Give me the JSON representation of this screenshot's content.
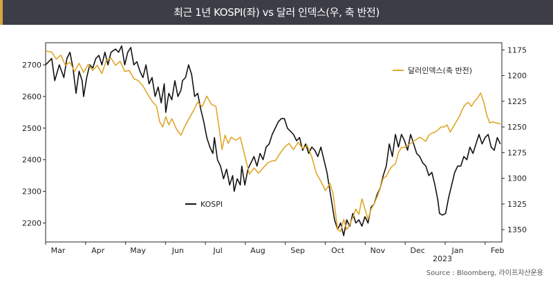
{
  "header": {
    "title": "최근 1년 KOSPI(좌) vs 달러 인덱스(우, 축 반전)"
  },
  "source": "Source : Bloomberg, 라이프자산운용",
  "chart_data": {
    "type": "line",
    "title": "최근 1년 KOSPI(좌) vs 달러 인덱스(우, 축 반전)",
    "x_months": [
      "Mar",
      "Apr",
      "May",
      "Jun",
      "Jul",
      "Aug",
      "Sep",
      "Oct",
      "Nov",
      "Dec",
      "Jan",
      "Feb"
    ],
    "x_year_label": "2023",
    "y_left": {
      "ticks": [
        2200,
        2300,
        2400,
        2500,
        2600,
        2700
      ],
      "range": [
        2140,
        2770
      ]
    },
    "y_right": {
      "ticks": [
        1175,
        1200,
        1225,
        1250,
        1275,
        1300,
        1325,
        1350
      ],
      "range": [
        1168,
        1362
      ],
      "inverted": true
    },
    "series": [
      {
        "name": "KOSPI",
        "axis": "left",
        "color": "#111111",
        "points": [
          [
            0,
            2700
          ],
          [
            0.2,
            2720
          ],
          [
            0.3,
            2650
          ],
          [
            0.45,
            2700
          ],
          [
            0.6,
            2660
          ],
          [
            0.7,
            2720
          ],
          [
            0.8,
            2740
          ],
          [
            0.9,
            2690
          ],
          [
            1.0,
            2610
          ],
          [
            1.1,
            2680
          ],
          [
            1.2,
            2650
          ],
          [
            1.25,
            2600
          ],
          [
            1.35,
            2660
          ],
          [
            1.45,
            2700
          ],
          [
            1.55,
            2690
          ],
          [
            1.65,
            2720
          ],
          [
            1.75,
            2730
          ],
          [
            1.85,
            2700
          ],
          [
            1.95,
            2740
          ],
          [
            2.05,
            2700
          ],
          [
            2.15,
            2740
          ],
          [
            2.3,
            2750
          ],
          [
            2.4,
            2740
          ],
          [
            2.5,
            2760
          ],
          [
            2.6,
            2700
          ],
          [
            2.7,
            2740
          ],
          [
            2.8,
            2755
          ],
          [
            2.9,
            2700
          ],
          [
            3.0,
            2710
          ],
          [
            3.1,
            2680
          ],
          [
            3.2,
            2660
          ],
          [
            3.3,
            2700
          ],
          [
            3.4,
            2640
          ],
          [
            3.5,
            2660
          ],
          [
            3.6,
            2600
          ],
          [
            3.7,
            2630
          ],
          [
            3.8,
            2580
          ],
          [
            3.9,
            2640
          ],
          [
            3.95,
            2550
          ],
          [
            4.05,
            2610
          ],
          [
            4.15,
            2590
          ],
          [
            4.25,
            2650
          ],
          [
            4.35,
            2600
          ],
          [
            4.45,
            2620
          ],
          [
            4.5,
            2650
          ],
          [
            4.6,
            2660
          ],
          [
            4.7,
            2700
          ],
          [
            4.8,
            2670
          ],
          [
            4.9,
            2600
          ],
          [
            5.0,
            2610
          ],
          [
            5.1,
            2560
          ],
          [
            5.2,
            2520
          ],
          [
            5.3,
            2470
          ],
          [
            5.4,
            2440
          ],
          [
            5.5,
            2420
          ],
          [
            5.55,
            2470
          ],
          [
            5.65,
            2400
          ],
          [
            5.75,
            2380
          ],
          [
            5.85,
            2340
          ],
          [
            5.95,
            2370
          ],
          [
            6.05,
            2320
          ],
          [
            6.15,
            2350
          ],
          [
            6.2,
            2300
          ],
          [
            6.3,
            2340
          ],
          [
            6.4,
            2320
          ],
          [
            6.45,
            2380
          ],
          [
            6.55,
            2320
          ],
          [
            6.65,
            2370
          ],
          [
            6.75,
            2390
          ],
          [
            6.85,
            2410
          ],
          [
            6.95,
            2380
          ],
          [
            7.05,
            2420
          ],
          [
            7.15,
            2400
          ],
          [
            7.25,
            2440
          ],
          [
            7.35,
            2450
          ],
          [
            7.45,
            2480
          ],
          [
            7.55,
            2500
          ],
          [
            7.65,
            2520
          ],
          [
            7.75,
            2530
          ],
          [
            7.85,
            2530
          ],
          [
            7.95,
            2500
          ],
          [
            8.05,
            2490
          ],
          [
            8.15,
            2480
          ],
          [
            8.25,
            2460
          ],
          [
            8.35,
            2470
          ],
          [
            8.45,
            2430
          ],
          [
            8.55,
            2450
          ],
          [
            8.65,
            2420
          ],
          [
            8.75,
            2440
          ],
          [
            8.85,
            2430
          ],
          [
            8.95,
            2410
          ],
          [
            9.05,
            2440
          ],
          [
            9.15,
            2400
          ],
          [
            9.25,
            2360
          ],
          [
            9.35,
            2300
          ],
          [
            9.45,
            2240
          ],
          [
            9.5,
            2210
          ],
          [
            9.6,
            2180
          ],
          [
            9.7,
            2200
          ],
          [
            9.8,
            2160
          ],
          [
            9.9,
            2210
          ],
          [
            10.0,
            2190
          ],
          [
            10.1,
            2230
          ],
          [
            10.2,
            2200
          ],
          [
            10.3,
            2210
          ],
          [
            10.4,
            2190
          ],
          [
            10.5,
            2220
          ],
          [
            10.6,
            2200
          ],
          [
            10.7,
            2250
          ],
          [
            10.8,
            2260
          ],
          [
            10.9,
            2290
          ],
          [
            11.0,
            2310
          ],
          [
            11.1,
            2350
          ],
          [
            11.2,
            2380
          ],
          [
            11.3,
            2450
          ],
          [
            11.4,
            2410
          ],
          [
            11.5,
            2480
          ],
          [
            11.6,
            2440
          ],
          [
            11.7,
            2480
          ],
          [
            11.8,
            2460
          ],
          [
            11.9,
            2430
          ],
          [
            12.0,
            2480
          ],
          [
            12.1,
            2450
          ],
          [
            12.2,
            2420
          ],
          [
            12.3,
            2410
          ],
          [
            12.4,
            2390
          ],
          [
            12.5,
            2380
          ],
          [
            12.6,
            2350
          ],
          [
            12.7,
            2360
          ],
          [
            12.8,
            2320
          ],
          [
            12.9,
            2270
          ],
          [
            12.95,
            2230
          ],
          [
            13.05,
            2225
          ],
          [
            13.15,
            2230
          ],
          [
            13.25,
            2280
          ],
          [
            13.35,
            2320
          ],
          [
            13.45,
            2360
          ],
          [
            13.55,
            2380
          ],
          [
            13.65,
            2380
          ],
          [
            13.75,
            2410
          ],
          [
            13.85,
            2400
          ],
          [
            13.95,
            2440
          ],
          [
            14.05,
            2420
          ],
          [
            14.15,
            2450
          ],
          [
            14.25,
            2480
          ],
          [
            14.35,
            2450
          ],
          [
            14.45,
            2470
          ],
          [
            14.55,
            2480
          ],
          [
            14.65,
            2440
          ],
          [
            14.75,
            2430
          ],
          [
            14.85,
            2470
          ],
          [
            14.95,
            2450
          ]
        ]
      },
      {
        "name": "달러인덱스(축 반전)",
        "axis": "right",
        "color": "#e0a629",
        "points": [
          [
            0,
            1176
          ],
          [
            0.2,
            1177
          ],
          [
            0.35,
            1184
          ],
          [
            0.5,
            1180
          ],
          [
            0.65,
            1190
          ],
          [
            0.8,
            1187
          ],
          [
            0.95,
            1196
          ],
          [
            1.1,
            1188
          ],
          [
            1.25,
            1197
          ],
          [
            1.4,
            1189
          ],
          [
            1.55,
            1195
          ],
          [
            1.7,
            1190
          ],
          [
            1.85,
            1198
          ],
          [
            2.0,
            1185
          ],
          [
            2.15,
            1183
          ],
          [
            2.3,
            1190
          ],
          [
            2.45,
            1186
          ],
          [
            2.6,
            1196
          ],
          [
            2.75,
            1195
          ],
          [
            2.9,
            1203
          ],
          [
            3.05,
            1205
          ],
          [
            3.2,
            1210
          ],
          [
            3.35,
            1218
          ],
          [
            3.5,
            1225
          ],
          [
            3.65,
            1230
          ],
          [
            3.75,
            1245
          ],
          [
            3.85,
            1250
          ],
          [
            3.95,
            1240
          ],
          [
            4.05,
            1248
          ],
          [
            4.15,
            1242
          ],
          [
            4.3,
            1252
          ],
          [
            4.45,
            1258
          ],
          [
            4.6,
            1248
          ],
          [
            4.75,
            1240
          ],
          [
            4.9,
            1232
          ],
          [
            5.0,
            1226
          ],
          [
            5.15,
            1230
          ],
          [
            5.3,
            1220
          ],
          [
            5.45,
            1228
          ],
          [
            5.6,
            1230
          ],
          [
            5.7,
            1250
          ],
          [
            5.8,
            1272
          ],
          [
            5.9,
            1258
          ],
          [
            6.0,
            1266
          ],
          [
            6.1,
            1260
          ],
          [
            6.25,
            1263
          ],
          [
            6.4,
            1260
          ],
          [
            6.55,
            1278
          ],
          [
            6.7,
            1296
          ],
          [
            6.85,
            1290
          ],
          [
            7.0,
            1295
          ],
          [
            7.15,
            1290
          ],
          [
            7.3,
            1285
          ],
          [
            7.45,
            1283
          ],
          [
            7.55,
            1283
          ],
          [
            7.7,
            1276
          ],
          [
            7.85,
            1270
          ],
          [
            8.0,
            1266
          ],
          [
            8.15,
            1272
          ],
          [
            8.3,
            1265
          ],
          [
            8.45,
            1271
          ],
          [
            8.6,
            1268
          ],
          [
            8.75,
            1279
          ],
          [
            8.9,
            1295
          ],
          [
            9.05,
            1303
          ],
          [
            9.2,
            1312
          ],
          [
            9.35,
            1305
          ],
          [
            9.45,
            1315
          ],
          [
            9.6,
            1350
          ],
          [
            9.7,
            1352
          ],
          [
            9.8,
            1340
          ],
          [
            9.9,
            1350
          ],
          [
            10.0,
            1345
          ],
          [
            10.1,
            1338
          ],
          [
            10.2,
            1330
          ],
          [
            10.3,
            1335
          ],
          [
            10.4,
            1320
          ],
          [
            10.5,
            1330
          ],
          [
            10.6,
            1340
          ],
          [
            10.7,
            1330
          ],
          [
            10.8,
            1325
          ],
          [
            10.9,
            1318
          ],
          [
            11.0,
            1310
          ],
          [
            11.1,
            1300
          ],
          [
            11.2,
            1298
          ],
          [
            11.3,
            1292
          ],
          [
            11.4,
            1288
          ],
          [
            11.5,
            1286
          ],
          [
            11.6,
            1275
          ],
          [
            11.7,
            1270
          ],
          [
            11.8,
            1270
          ],
          [
            11.9,
            1268
          ],
          [
            12.0,
            1266
          ],
          [
            12.1,
            1264
          ],
          [
            12.2,
            1262
          ],
          [
            12.3,
            1260
          ],
          [
            12.4,
            1262
          ],
          [
            12.5,
            1264
          ],
          [
            12.6,
            1258
          ],
          [
            12.7,
            1256
          ],
          [
            12.8,
            1255
          ],
          [
            12.9,
            1253
          ],
          [
            13.0,
            1250
          ],
          [
            13.1,
            1250
          ],
          [
            13.2,
            1248
          ],
          [
            13.3,
            1255
          ],
          [
            13.4,
            1250
          ],
          [
            13.5,
            1245
          ],
          [
            13.6,
            1240
          ],
          [
            13.7,
            1233
          ],
          [
            13.8,
            1228
          ],
          [
            13.9,
            1226
          ],
          [
            14.0,
            1230
          ],
          [
            14.1,
            1225
          ],
          [
            14.2,
            1222
          ],
          [
            14.3,
            1217
          ],
          [
            14.4,
            1225
          ],
          [
            14.5,
            1238
          ],
          [
            14.6,
            1246
          ],
          [
            14.7,
            1245
          ],
          [
            14.8,
            1246
          ],
          [
            14.95,
            1247
          ]
        ]
      }
    ],
    "legend": [
      {
        "label": "달러인덱스(축 반전)",
        "series": 1,
        "placement": "upper-right"
      },
      {
        "label": "KOSPI",
        "series": 0,
        "placement": "lower-left"
      }
    ],
    "grid": false
  }
}
